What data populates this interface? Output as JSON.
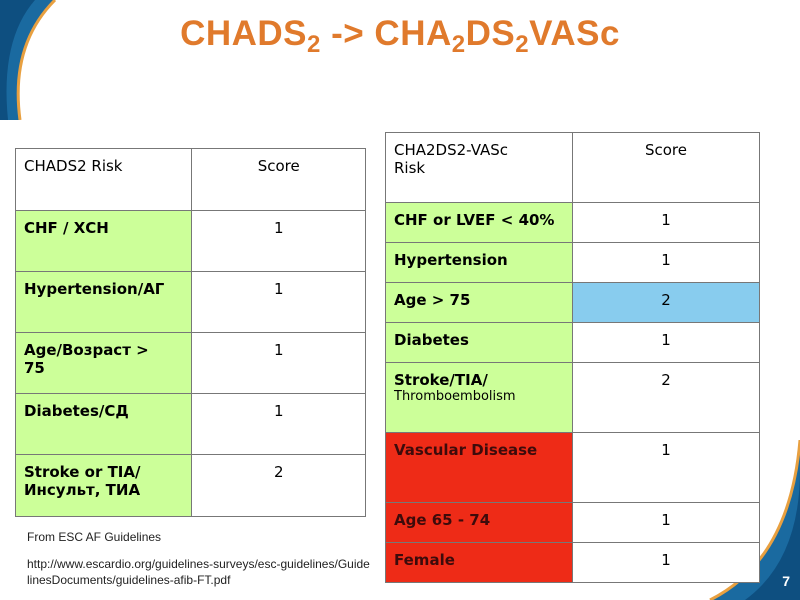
{
  "title": {
    "part1": "CHADS",
    "sub1": "2",
    "part2": " -> CHA",
    "sub2": "2",
    "part3": "DS",
    "sub3": "2",
    "part4": "VASc"
  },
  "table1": {
    "header": [
      "CHADS2 Risk",
      "Score"
    ],
    "rows": [
      {
        "risk": "CHF / ХСН",
        "score": "1"
      },
      {
        "risk": "Hypertension/АГ",
        "score": "1"
      },
      {
        "risk": "Age/Возраст     >\n75",
        "score": "1"
      },
      {
        "risk": "Diabetes/СД",
        "score": "1"
      },
      {
        "risk": "Stroke or TIA/\nИнсульт, ТИА",
        "score": "2"
      }
    ]
  },
  "table2": {
    "header": [
      "CHA2DS2-VASc\nRisk",
      "Score"
    ],
    "rows": [
      {
        "risk": "CHF or LVEF < 40%",
        "score": "1"
      },
      {
        "risk": "Hypertension",
        "score": "1"
      },
      {
        "risk": "Age > 75",
        "score": "2"
      },
      {
        "risk": "Diabetes",
        "score": "1"
      },
      {
        "risk": "Stroke/TIA/",
        "risk_sub": "Thromboembolism",
        "score": "2"
      },
      {
        "risk": "Vascular Disease",
        "score": "1"
      },
      {
        "risk": "Age 65 - 74",
        "score": "1"
      },
      {
        "risk": "Female",
        "score": "1"
      }
    ]
  },
  "source": "From ESC AF Guidelines",
  "url": "http://www.escardio.org/guidelines-surveys/esc-guidelines/GuidelinesDocuments/guidelines-afib-FT.pdf",
  "page_number": "7",
  "colors": {
    "title": "#e07a2c",
    "green": "#ccff99",
    "blue": "#88ccee",
    "red": "#ee2b17",
    "corner": "#1a6aa0"
  }
}
